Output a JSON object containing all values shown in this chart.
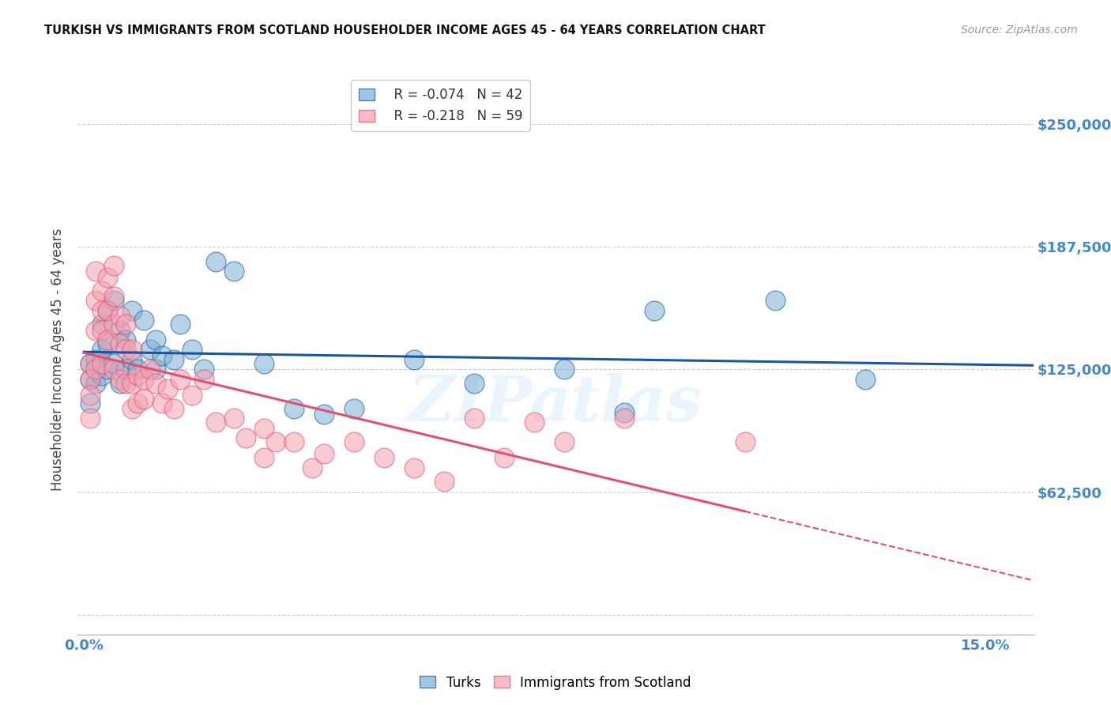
{
  "title": "TURKISH VS IMMIGRANTS FROM SCOTLAND HOUSEHOLDER INCOME AGES 45 - 64 YEARS CORRELATION CHART",
  "source": "Source: ZipAtlas.com",
  "ylabel": "Householder Income Ages 45 - 64 years",
  "y_ticks": [
    0,
    62500,
    125000,
    187500,
    250000
  ],
  "y_tick_labels": [
    "",
    "$62,500",
    "$125,000",
    "$187,500",
    "$250,000"
  ],
  "y_min": -10000,
  "y_max": 270000,
  "x_min": -0.001,
  "x_max": 0.158,
  "color_blue": "#7BAFD4",
  "color_pink": "#F4A0B0",
  "trendline_blue": "#1A56A0",
  "trendline_pink": "#E05070",
  "background": "#FFFFFF",
  "grid_color": "#CCCCCC",
  "axis_label_color": "#4488CC",
  "watermark": "ZIPatlas",
  "legend_r1": "R = -0.074",
  "legend_n1": "N = 42",
  "legend_r2": "R = -0.218",
  "legend_n2": "N = 59",
  "turks_x": [
    0.001,
    0.001,
    0.001,
    0.002,
    0.002,
    0.003,
    0.003,
    0.003,
    0.004,
    0.004,
    0.004,
    0.005,
    0.005,
    0.006,
    0.006,
    0.007,
    0.007,
    0.008,
    0.008,
    0.009,
    0.01,
    0.011,
    0.012,
    0.012,
    0.013,
    0.015,
    0.016,
    0.018,
    0.02,
    0.022,
    0.025,
    0.03,
    0.035,
    0.04,
    0.045,
    0.055,
    0.065,
    0.08,
    0.09,
    0.095,
    0.115,
    0.13
  ],
  "turks_y": [
    128000,
    120000,
    108000,
    130000,
    118000,
    148000,
    135000,
    122000,
    155000,
    138000,
    125000,
    160000,
    128000,
    145000,
    118000,
    140000,
    125000,
    155000,
    130000,
    125000,
    150000,
    135000,
    140000,
    125000,
    132000,
    130000,
    148000,
    135000,
    125000,
    180000,
    175000,
    128000,
    105000,
    102000,
    105000,
    130000,
    118000,
    125000,
    103000,
    155000,
    160000,
    120000
  ],
  "scotland_x": [
    0.001,
    0.001,
    0.001,
    0.001,
    0.002,
    0.002,
    0.002,
    0.002,
    0.003,
    0.003,
    0.003,
    0.003,
    0.004,
    0.004,
    0.004,
    0.005,
    0.005,
    0.005,
    0.005,
    0.006,
    0.006,
    0.006,
    0.007,
    0.007,
    0.007,
    0.008,
    0.008,
    0.008,
    0.009,
    0.009,
    0.01,
    0.01,
    0.011,
    0.012,
    0.013,
    0.014,
    0.015,
    0.016,
    0.018,
    0.02,
    0.022,
    0.025,
    0.027,
    0.03,
    0.03,
    0.032,
    0.035,
    0.038,
    0.04,
    0.045,
    0.05,
    0.055,
    0.06,
    0.065,
    0.07,
    0.075,
    0.08,
    0.09,
    0.11
  ],
  "scotland_y": [
    128000,
    120000,
    112000,
    100000,
    175000,
    160000,
    145000,
    125000,
    165000,
    155000,
    145000,
    128000,
    172000,
    155000,
    140000,
    178000,
    162000,
    148000,
    125000,
    152000,
    138000,
    120000,
    148000,
    135000,
    118000,
    135000,
    118000,
    105000,
    122000,
    108000,
    120000,
    110000,
    125000,
    118000,
    108000,
    115000,
    105000,
    120000,
    112000,
    120000,
    98000,
    100000,
    90000,
    95000,
    80000,
    88000,
    88000,
    75000,
    82000,
    88000,
    80000,
    75000,
    68000,
    100000,
    80000,
    98000,
    88000,
    100000,
    88000
  ]
}
